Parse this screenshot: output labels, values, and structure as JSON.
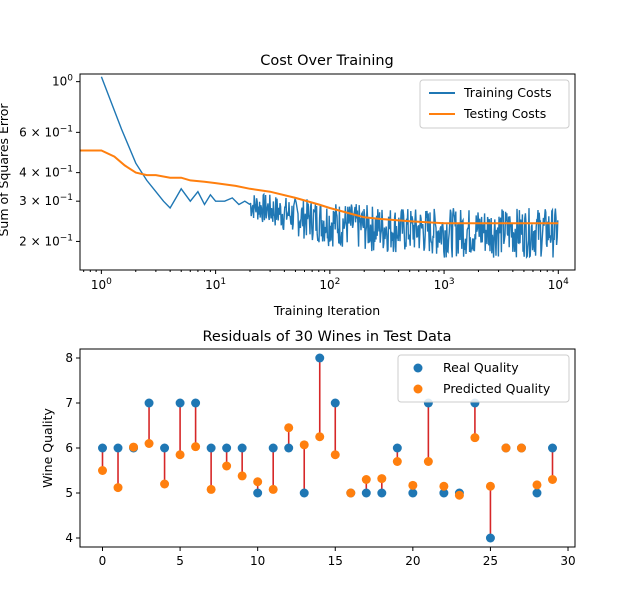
{
  "chart_data": [
    {
      "type": "line",
      "title": "Cost Over Training",
      "xlabel": "Training Iteration",
      "ylabel": "Sum of Squares Error",
      "xscale": "log",
      "yscale": "log",
      "xlim": [
        0.65,
        14000
      ],
      "ylim": [
        0.15,
        1.08
      ],
      "x_ticks": [
        {
          "value": 1,
          "label": "10",
          "exp": "0"
        },
        {
          "value": 10,
          "label": "10",
          "exp": "1"
        },
        {
          "value": 100,
          "label": "10",
          "exp": "2"
        },
        {
          "value": 1000,
          "label": "10",
          "exp": "3"
        },
        {
          "value": 10000,
          "label": "10",
          "exp": "4"
        }
      ],
      "y_ticks": [
        {
          "value": 1.0,
          "label": "10",
          "exp": "0"
        },
        {
          "value": 0.6,
          "label": "6 × 10",
          "exp": "−1"
        },
        {
          "value": 0.4,
          "label": "4 × 10",
          "exp": "−1"
        },
        {
          "value": 0.3,
          "label": "3 × 10",
          "exp": "−1"
        },
        {
          "value": 0.2,
          "label": "2 × 10",
          "exp": "−1"
        }
      ],
      "legend_position": "top-right",
      "series": [
        {
          "name": "Training Costs",
          "color": "#1f77b4",
          "x": [
            1,
            1.5,
            2,
            2.5,
            3,
            3.5,
            4,
            4.5,
            5,
            6,
            7,
            8,
            9,
            10,
            12,
            14,
            16,
            18,
            20,
            25,
            30,
            35,
            40,
            50,
            60,
            70,
            80,
            100,
            130,
            160,
            200,
            300,
            500,
            700,
            1000,
            2000,
            5000,
            10000
          ],
          "y": [
            1.05,
            0.62,
            0.44,
            0.37,
            0.33,
            0.3,
            0.28,
            0.31,
            0.34,
            0.3,
            0.33,
            0.29,
            0.32,
            0.3,
            0.3,
            0.31,
            0.29,
            0.3,
            0.29,
            0.28,
            0.29,
            0.27,
            0.28,
            0.26,
            0.27,
            0.25,
            0.25,
            0.24,
            0.23,
            0.23,
            0.22,
            0.21,
            0.22,
            0.21,
            0.22,
            0.21,
            0.22,
            0.22
          ],
          "noise_band": {
            "x": [
              20,
              50,
              100,
              200,
              500,
              1000,
              3000,
              10000
            ],
            "low": [
              0.25,
              0.21,
              0.19,
              0.18,
              0.175,
              0.17,
              0.17,
              0.17
            ],
            "high": [
              0.33,
              0.31,
              0.3,
              0.29,
              0.28,
              0.28,
              0.28,
              0.28
            ]
          }
        },
        {
          "name": "Testing Costs",
          "color": "#ff7f0e",
          "x": [
            0.65,
            1,
            1.3,
            1.6,
            2,
            2.5,
            3,
            4,
            5,
            6,
            8,
            10,
            15,
            20,
            30,
            50,
            80,
            100,
            150,
            200,
            300,
            500,
            1000,
            2000,
            5000,
            10000
          ],
          "y": [
            0.5,
            0.5,
            0.47,
            0.43,
            0.4,
            0.39,
            0.39,
            0.38,
            0.38,
            0.37,
            0.365,
            0.36,
            0.35,
            0.34,
            0.33,
            0.31,
            0.29,
            0.28,
            0.265,
            0.255,
            0.25,
            0.245,
            0.24,
            0.24,
            0.24,
            0.24
          ]
        }
      ]
    },
    {
      "type": "scatter",
      "title": "Residuals of 30 Wines in Test Data",
      "xlabel": "",
      "ylabel": "Wine Quality",
      "xlim": [
        -1.45,
        30.45
      ],
      "ylim": [
        3.8,
        8.2
      ],
      "x_ticks": [
        0,
        5,
        10,
        15,
        20,
        25,
        30
      ],
      "y_ticks": [
        4,
        5,
        6,
        7,
        8
      ],
      "legend_position": "top-right",
      "residual_color": "#d62728",
      "series": [
        {
          "name": "Real Quality",
          "color": "#1f77b4",
          "x": [
            0,
            1,
            2,
            3,
            4,
            5,
            6,
            7,
            8,
            9,
            10,
            11,
            12,
            13,
            14,
            15,
            16,
            17,
            18,
            19,
            20,
            21,
            22,
            23,
            24,
            25,
            26,
            27,
            28,
            29
          ],
          "y": [
            6,
            6,
            6,
            7,
            6,
            7,
            7,
            6,
            6,
            6,
            5,
            6,
            6,
            5,
            8,
            7,
            5,
            5,
            5,
            6,
            5,
            7,
            5,
            5,
            7,
            4,
            6,
            6,
            5,
            6
          ]
        },
        {
          "name": "Predicted Quality",
          "color": "#ff7f0e",
          "x": [
            0,
            1,
            2,
            3,
            4,
            5,
            6,
            7,
            8,
            9,
            10,
            11,
            12,
            13,
            14,
            15,
            16,
            17,
            18,
            19,
            20,
            21,
            22,
            23,
            24,
            25,
            26,
            27,
            28,
            29
          ],
          "y": [
            5.5,
            5.12,
            6.02,
            6.1,
            5.2,
            5.85,
            6.03,
            5.08,
            5.6,
            5.38,
            5.25,
            5.08,
            6.45,
            6.07,
            6.25,
            5.85,
            5.0,
            5.3,
            5.32,
            5.7,
            5.17,
            5.7,
            5.15,
            4.95,
            6.23,
            5.15,
            6.0,
            6.0,
            5.18,
            5.3
          ]
        }
      ]
    }
  ]
}
